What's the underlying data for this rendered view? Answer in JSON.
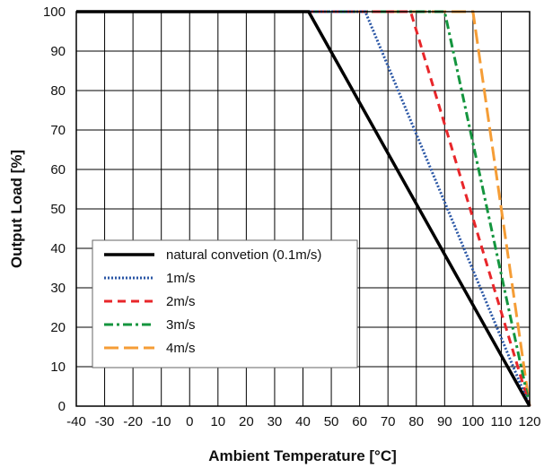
{
  "chart_data": {
    "type": "line",
    "title": "",
    "xlabel": "Ambient Temperature [°C]",
    "ylabel": "Output Load [%]",
    "xlim": [
      -40,
      120
    ],
    "ylim": [
      0,
      100
    ],
    "x_ticks": [
      -40,
      -30,
      -20,
      -10,
      0,
      10,
      20,
      30,
      40,
      50,
      60,
      70,
      80,
      90,
      100,
      110,
      120
    ],
    "y_ticks": [
      0,
      10,
      20,
      30,
      40,
      50,
      60,
      70,
      80,
      90,
      100
    ],
    "grid": true,
    "legend_position": "lower-left",
    "series": [
      {
        "name": "natural convetion (0.1m/s)",
        "color": "#000000",
        "style": "solid",
        "points": [
          [
            -40,
            100
          ],
          [
            42,
            100
          ],
          [
            120,
            0
          ]
        ]
      },
      {
        "name": "1m/s",
        "color": "#2a56a5",
        "style": "dotted",
        "points": [
          [
            -40,
            100
          ],
          [
            62,
            100
          ],
          [
            120,
            0
          ]
        ]
      },
      {
        "name": "2m/s",
        "color": "#e8262a",
        "style": "dashed",
        "points": [
          [
            -40,
            100
          ],
          [
            78,
            100
          ],
          [
            120,
            0
          ]
        ]
      },
      {
        "name": "3m/s",
        "color": "#14953e",
        "style": "dashdot",
        "points": [
          [
            -40,
            100
          ],
          [
            90,
            100
          ],
          [
            120,
            0
          ]
        ]
      },
      {
        "name": "4m/s",
        "color": "#f59d36",
        "style": "longdash",
        "points": [
          [
            -40,
            100
          ],
          [
            100,
            100
          ],
          [
            120,
            0
          ]
        ]
      }
    ]
  }
}
